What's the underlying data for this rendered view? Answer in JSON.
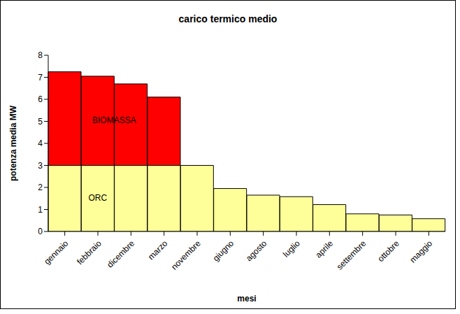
{
  "chart_data": {
    "type": "bar",
    "title": "carico termico medio",
    "x_label": "mesi",
    "y_label": "potenza media MW",
    "categories": [
      "gennaio",
      "febbraio",
      "dicembre",
      "marzo",
      "novembre",
      "giugno",
      "agosto",
      "luglio",
      "aprile",
      "settembre",
      "ottobre",
      "maggio"
    ],
    "series": [
      {
        "name": "ORC",
        "color": "#ffff99",
        "values": [
          3,
          3,
          3,
          3,
          3,
          1.95,
          1.65,
          1.58,
          1.22,
          0.8,
          0.75,
          0.58
        ]
      },
      {
        "name": "BIOMASSA",
        "color": "#ff0000",
        "values": [
          4.25,
          4.05,
          3.7,
          3.1,
          0,
          0,
          0,
          0,
          0,
          0,
          0,
          0
        ]
      }
    ],
    "stacked": true,
    "ylim": [
      0,
      8
    ],
    "yticks": [
      0,
      1,
      2,
      3,
      4,
      5,
      6,
      7,
      8
    ],
    "grid": false
  }
}
